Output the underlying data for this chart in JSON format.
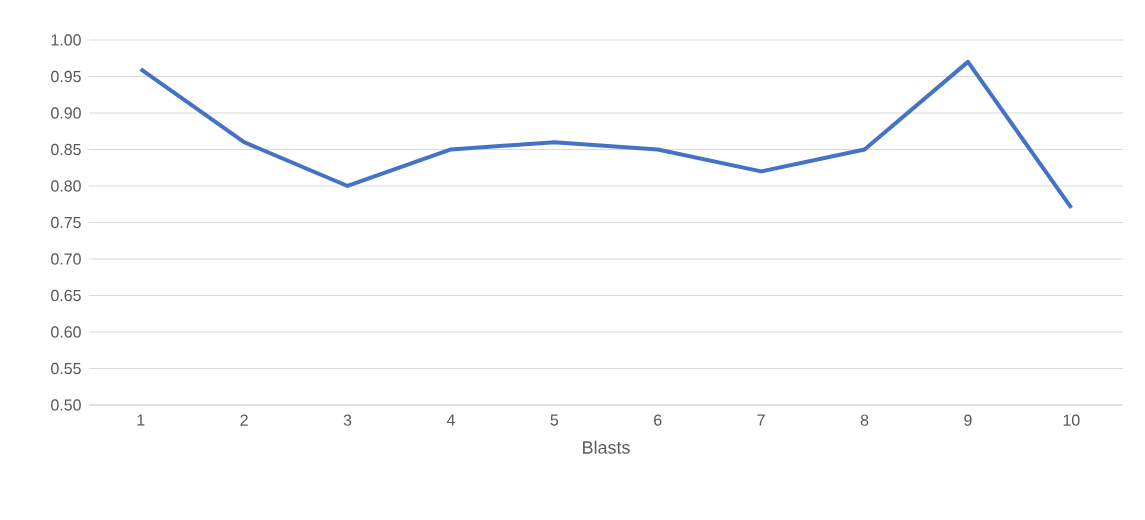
{
  "chart_data": {
    "type": "line",
    "xlabel": "Blasts",
    "categories": [
      "1",
      "2",
      "3",
      "4",
      "5",
      "6",
      "7",
      "8",
      "9",
      "10"
    ],
    "values": [
      0.96,
      0.86,
      0.8,
      0.85,
      0.86,
      0.85,
      0.82,
      0.85,
      0.97,
      0.77
    ],
    "color": "#4472c4",
    "ylim": [
      0.5,
      1.0
    ],
    "yticks": [
      {
        "value": 0.5,
        "label": "0.50"
      },
      {
        "value": 0.55,
        "label": "0.55"
      },
      {
        "value": 0.6,
        "label": "0.60"
      },
      {
        "value": 0.65,
        "label": "0.65"
      },
      {
        "value": 0.7,
        "label": "0.70"
      },
      {
        "value": 0.75,
        "label": "0.75"
      },
      {
        "value": 0.8,
        "label": "0.80"
      },
      {
        "value": 0.85,
        "label": "0.85"
      },
      {
        "value": 0.9,
        "label": "0.90"
      },
      {
        "value": 0.95,
        "label": "0.95"
      },
      {
        "value": 1.0,
        "label": "1.00"
      }
    ],
    "grid": "y",
    "marker": "none",
    "line_style": "solid"
  }
}
